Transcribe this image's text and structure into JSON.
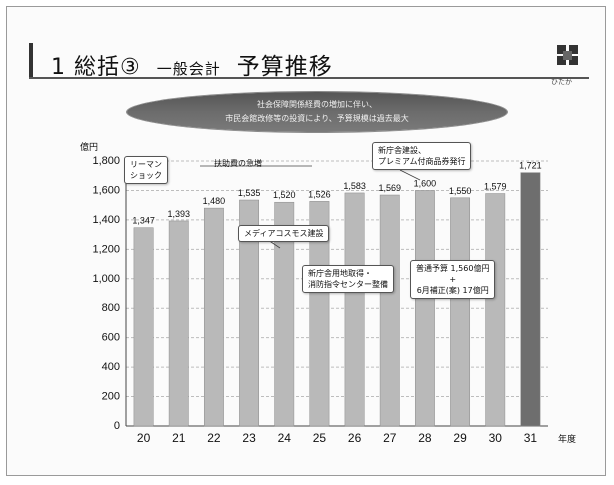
{
  "slide": {
    "title_number": "1",
    "title_main": "総括③",
    "title_sub": "一般会計",
    "title_main2": "予算推移",
    "logo_caption": "ひたか",
    "banner_line1": "社会保障関係経費の増加に伴い、",
    "banner_line2": "市民会館改修等の投資により、予算規模は過去最大"
  },
  "chart_data": {
    "type": "bar",
    "title": "",
    "ylabel": "億円",
    "xlabel": "年度",
    "ylim": [
      0,
      1800
    ],
    "yticks": [
      0,
      200,
      400,
      600,
      800,
      "1,000",
      "1,200",
      "1,400",
      "1,600",
      "1,800"
    ],
    "grid": true,
    "categories": [
      "20",
      "21",
      "22",
      "23",
      "24",
      "25",
      "26",
      "27",
      "28",
      "29",
      "30",
      "31"
    ],
    "values": [
      1347,
      1393,
      1480,
      1535,
      1520,
      1526,
      1583,
      1569,
      1600,
      1550,
      1579,
      1721
    ],
    "value_labels": [
      "1,347",
      "1,393",
      "1,480",
      "1,535",
      "1,520",
      "1,526",
      "1,583",
      "1,569",
      "1,600",
      "1,550",
      "1,579",
      "1,721"
    ],
    "colors": {
      "bar": "#b9b9b9",
      "bar_highlight": "#6e6e6e",
      "grid": "#bdbdbd"
    },
    "highlight_index": 11
  },
  "annotations": {
    "lehman": [
      "リーマン",
      "ショック"
    ],
    "plateau": "扶助費の急増",
    "media": "メディアコスモス建設",
    "premium": [
      "新庁舎建設、",
      "プレミアム付商品券発行"
    ],
    "fire": [
      "新庁舎用地取得・",
      "消防指令センター整備"
    ],
    "hokusei": [
      "普通予算 1,560億円",
      "+",
      "6月補正(案) 17億円"
    ]
  }
}
